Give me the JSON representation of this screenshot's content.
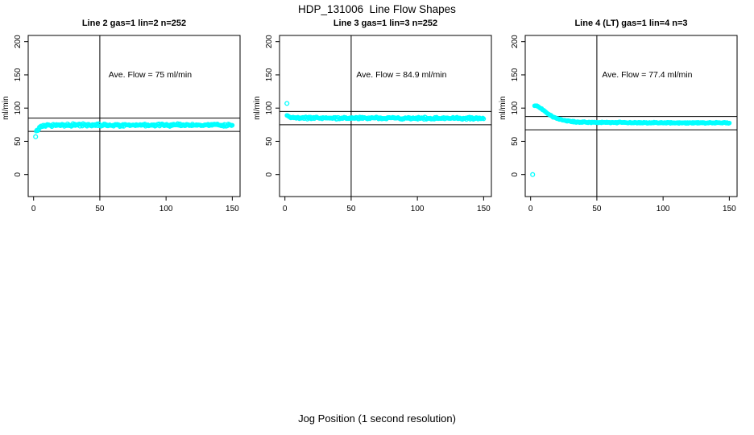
{
  "figure": {
    "title": "HDP_131006  Line Flow Shapes",
    "xlabel": "Jog Position (1 second resolution)"
  },
  "chart_data": {
    "type": "scatter",
    "title": "HDP_131006  Line Flow Shapes",
    "xlabel": "Jog Position (1 second resolution)",
    "ylabel": "ml/min",
    "point_color": "#00FFFF",
    "line_color": "#000000",
    "xlim": [
      0,
      150
    ],
    "ylim": [
      0,
      200
    ],
    "x_ticks": [
      0,
      50,
      100,
      150
    ],
    "y_ticks": [
      0,
      50,
      100,
      150,
      200
    ],
    "grid": false,
    "legend": "none",
    "panels": [
      {
        "title": "Line 2 gas=1 lin=2 n=252",
        "annotation": "Ave. Flow =  75  ml/min",
        "ave_flow": 75,
        "n": 252,
        "ref_lines": [
          65,
          85
        ],
        "vline_x": 50,
        "outliers": [
          [
            1.5,
            57
          ]
        ],
        "profile": [
          [
            2,
            64
          ],
          [
            3,
            67
          ],
          [
            4,
            69.5
          ],
          [
            5,
            71.5
          ],
          [
            6,
            72.8
          ],
          [
            8,
            73.8
          ],
          [
            12,
            74.3
          ],
          [
            20,
            74.5
          ],
          [
            150,
            74.5
          ]
        ],
        "band_halfwidth": 1.5,
        "x_start": 2,
        "x_end": 150
      },
      {
        "title": "Line 3 gas=1 lin=3 n=252",
        "annotation": "Ave. Flow =  84.9  ml/min",
        "ave_flow": 84.9,
        "n": 252,
        "ref_lines": [
          74.9,
          94.9
        ],
        "vline_x": 50,
        "outliers": [
          [
            1.5,
            107
          ]
        ],
        "profile": [
          [
            1.5,
            90
          ],
          [
            2.5,
            87.5
          ],
          [
            4,
            86
          ],
          [
            8,
            85.3
          ],
          [
            60,
            85
          ],
          [
            150,
            84.6
          ]
        ],
        "band_halfwidth": 1.3,
        "x_start": 1.5,
        "x_end": 150
      },
      {
        "title": "Line 4 (LT) gas=1 lin=4 n=3",
        "annotation": "Ave. Flow =  77.4  ml/min",
        "ave_flow": 77.4,
        "n": 3,
        "ref_lines": [
          67.4,
          87.4
        ],
        "vline_x": 50,
        "outliers": [
          [
            1.5,
            0
          ]
        ],
        "profile": [
          [
            3,
            104.5
          ],
          [
            4,
            104
          ],
          [
            5,
            103
          ],
          [
            7,
            100.5
          ],
          [
            9,
            97.5
          ],
          [
            11,
            94.5
          ],
          [
            14,
            90.5
          ],
          [
            17,
            87
          ],
          [
            20,
            84.5
          ],
          [
            24,
            82
          ],
          [
            28,
            80.5
          ],
          [
            34,
            79.3
          ],
          [
            45,
            78.6
          ],
          [
            70,
            78.2
          ],
          [
            150,
            77.8
          ]
        ],
        "band_halfwidth": 0.7,
        "x_start": 3,
        "x_end": 150
      }
    ]
  }
}
